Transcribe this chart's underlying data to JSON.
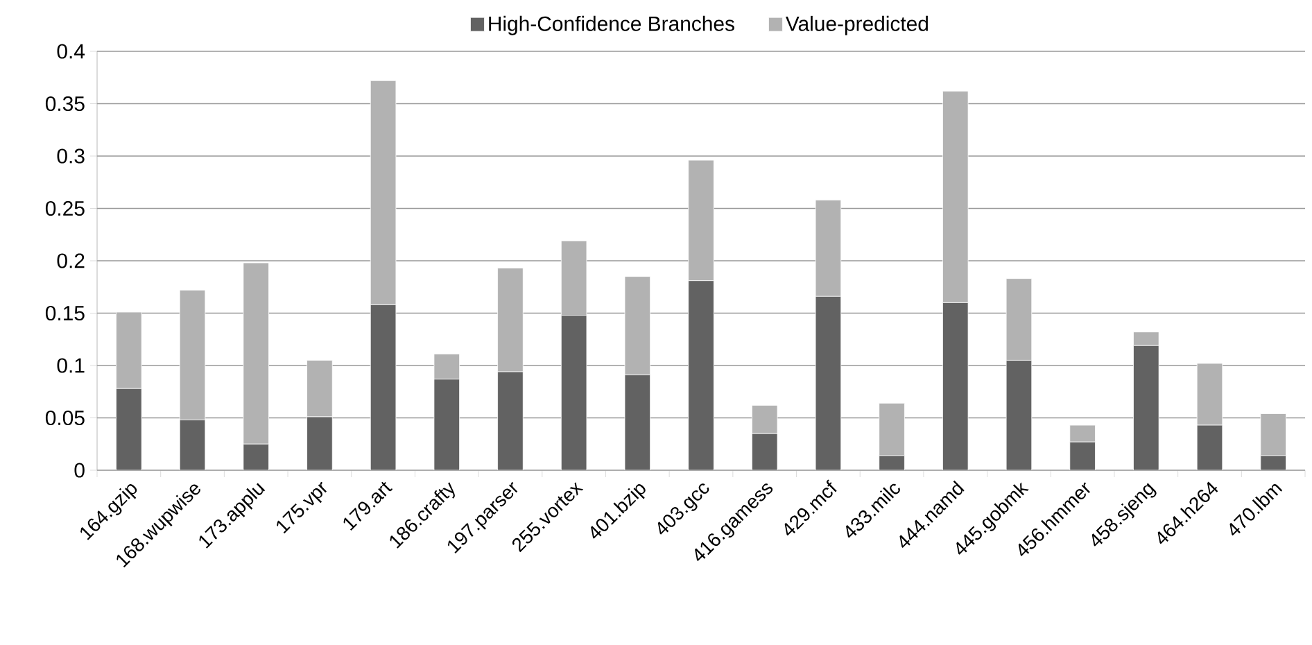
{
  "chart_data": {
    "type": "bar",
    "stacked": true,
    "categories": [
      "164.gzip",
      "168.wupwise",
      "173.applu",
      "175.vpr",
      "179.art",
      "186.crafty",
      "197.parser",
      "255.vortex",
      "401.bzip",
      "403.gcc",
      "416.gamess",
      "429.mcf",
      "433.milc",
      "444.namd",
      "445.gobmk",
      "456.hmmer",
      "458.sjeng",
      "464.h264",
      "470.lbm"
    ],
    "series": [
      {
        "name": "High-Confidence Branches",
        "color": "#626262",
        "values": [
          0.078,
          0.048,
          0.025,
          0.051,
          0.158,
          0.087,
          0.094,
          0.148,
          0.091,
          0.181,
          0.035,
          0.166,
          0.014,
          0.16,
          0.105,
          0.027,
          0.119,
          0.043,
          0.014
        ]
      },
      {
        "name": "Value-predicted",
        "color": "#b2b2b2",
        "values": [
          0.073,
          0.124,
          0.173,
          0.054,
          0.214,
          0.024,
          0.099,
          0.071,
          0.094,
          0.115,
          0.027,
          0.092,
          0.05,
          0.202,
          0.078,
          0.016,
          0.013,
          0.059,
          0.04
        ]
      }
    ],
    "ylim": [
      0,
      0.4
    ],
    "yticks": [
      0,
      0.05,
      0.1,
      0.15,
      0.2,
      0.25,
      0.3,
      0.35,
      0.4
    ],
    "grid": "y",
    "legend": "top"
  }
}
